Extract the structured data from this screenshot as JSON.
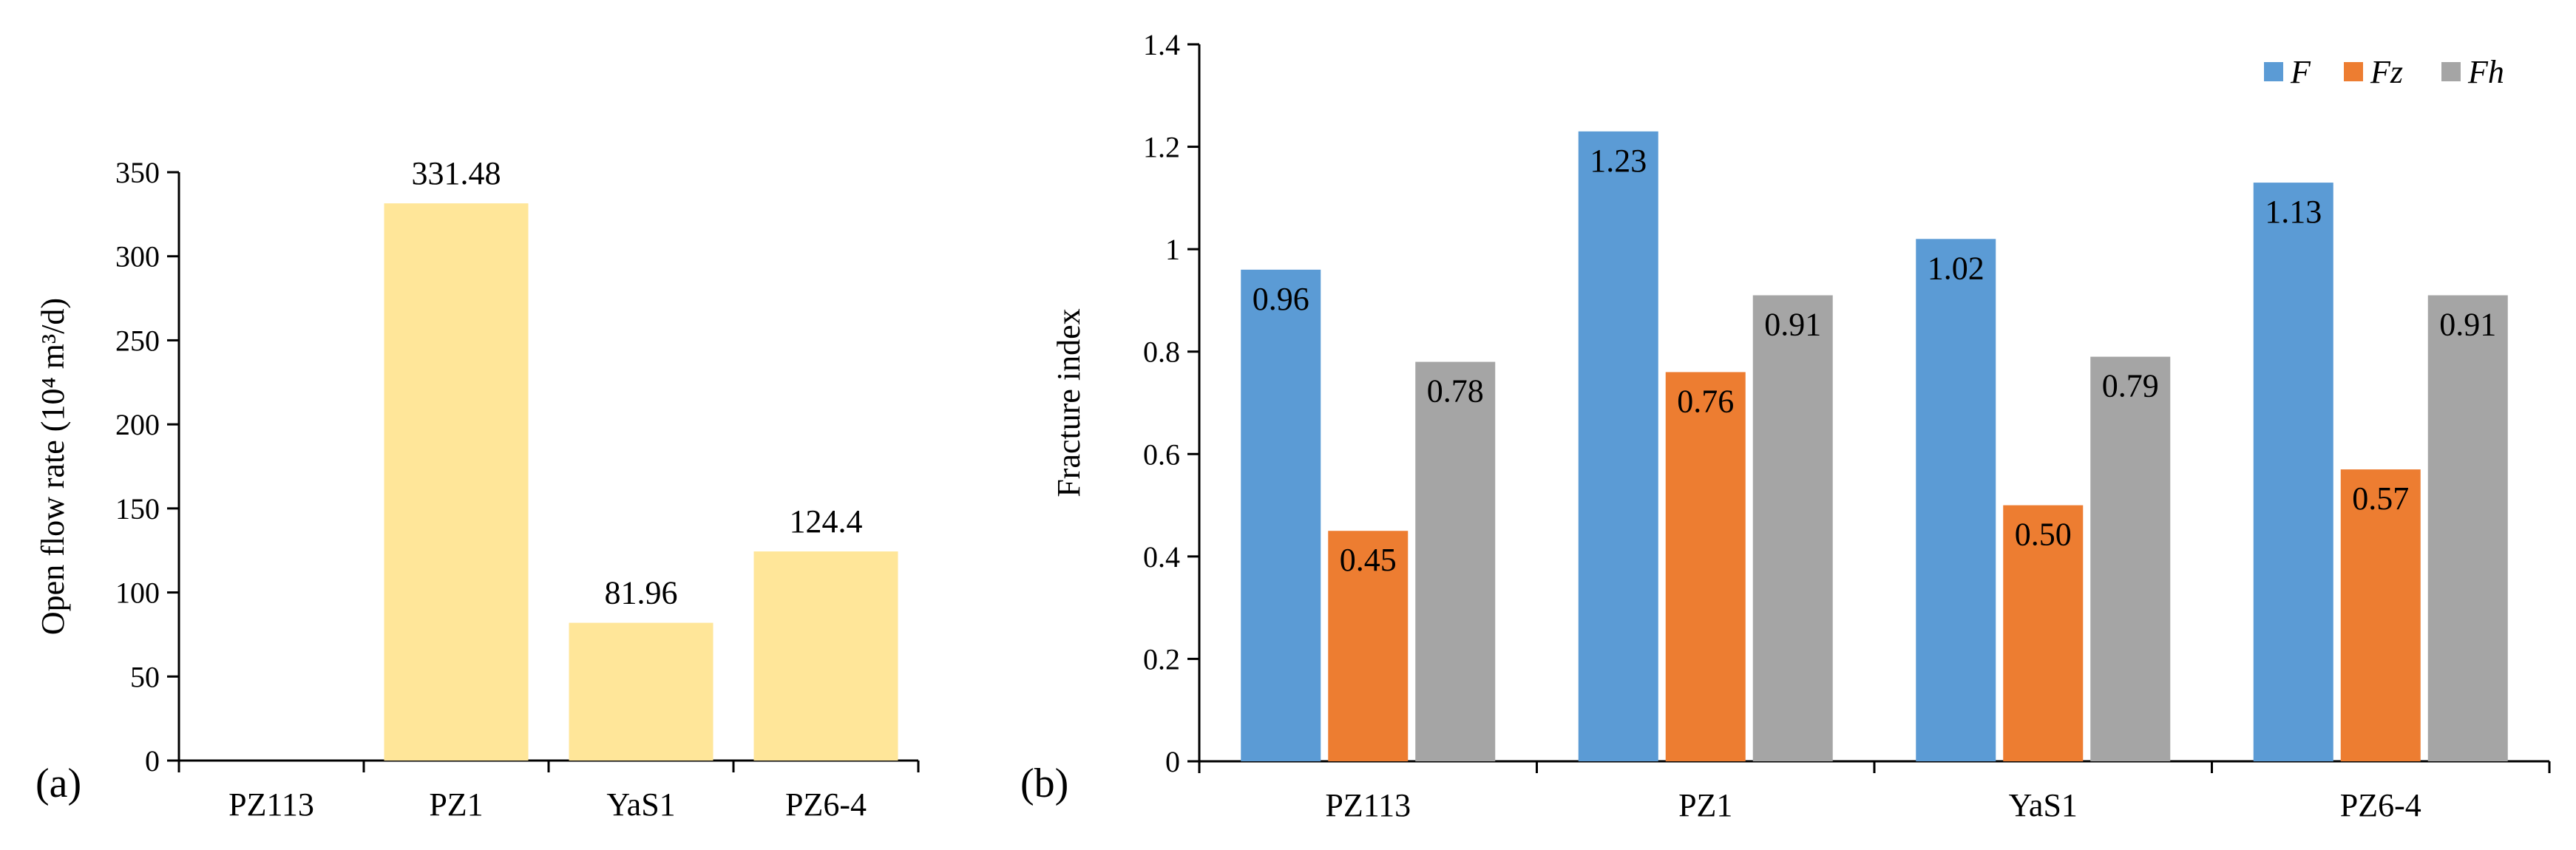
{
  "chart_data": [
    {
      "type": "bar",
      "panel_label": "(a)",
      "title": "",
      "xlabel": "",
      "ylabel": "Open flow rate (10⁴ m³/d)",
      "ylim": [
        0,
        350
      ],
      "yticks": [
        0,
        50,
        100,
        150,
        200,
        250,
        300,
        350
      ],
      "ytick_labels": [
        "0",
        "50",
        "100",
        "150",
        "200",
        "250",
        "300",
        "350"
      ],
      "categories": [
        "PZ113",
        "PZ1",
        "YaS1",
        "PZ6-4"
      ],
      "values": [
        0,
        331.48,
        81.96,
        124.4
      ],
      "data_labels": [
        "",
        "331.48",
        "81.96",
        "124.4"
      ],
      "bar_color": "#FFE699",
      "grid": false
    },
    {
      "type": "bar",
      "panel_label": "(b)",
      "title": "",
      "xlabel": "",
      "ylabel": "Fracture index",
      "ylim": [
        0,
        1.4
      ],
      "yticks": [
        0,
        0.2,
        0.4,
        0.6,
        0.8,
        1.0,
        1.2,
        1.4
      ],
      "ytick_labels": [
        "0",
        "0.2",
        "0.4",
        "0.6",
        "0.8",
        "1",
        "1.2",
        "1.4"
      ],
      "categories": [
        "PZ113",
        "PZ1",
        "YaS1",
        "PZ6-4"
      ],
      "series": [
        {
          "name": "F",
          "color": "#5B9BD5",
          "values": [
            0.96,
            1.23,
            1.02,
            1.13
          ],
          "labels": [
            "0.96",
            "1.23",
            "1.02",
            "1.13"
          ]
        },
        {
          "name": "Fz",
          "color": "#ED7D31",
          "values": [
            0.45,
            0.76,
            0.5,
            0.57
          ],
          "labels": [
            "0.45",
            "0.76",
            "0.50",
            "0.57"
          ]
        },
        {
          "name": "Fh",
          "color": "#A5A5A5",
          "values": [
            0.78,
            0.91,
            0.79,
            0.91
          ],
          "labels": [
            "0.78",
            "0.91",
            "0.79",
            "0.91"
          ]
        }
      ],
      "legend_position": "top-right",
      "grid": false
    }
  ]
}
